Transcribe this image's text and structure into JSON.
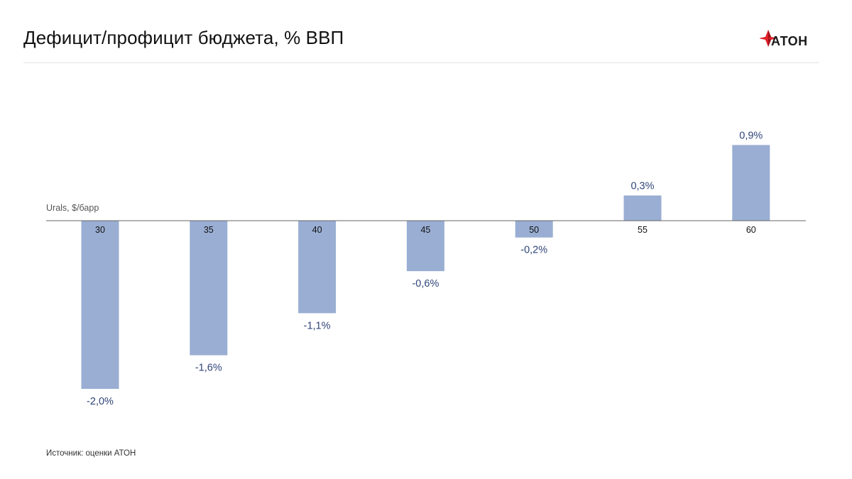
{
  "header": {
    "title": "Дефицит/профицит бюджета, % ВВП",
    "logo_text": "АТОН"
  },
  "footer": {
    "source": "Источник: оценки АТОН"
  },
  "colors": {
    "bar": "#9aaed3",
    "label": "#2f4478",
    "axis": "#666666",
    "logo_red": "#e0202a"
  },
  "chart_data": {
    "type": "bar",
    "title": "Дефицит/профицит бюджета, % ВВП",
    "xlabel": "Urals, $/барр",
    "ylabel": "",
    "categories": [
      "30",
      "35",
      "40",
      "45",
      "50",
      "55",
      "60"
    ],
    "values": [
      -2.0,
      -1.6,
      -1.1,
      -0.6,
      -0.2,
      0.3,
      0.9
    ],
    "value_labels": [
      "-2,0%",
      "-1,6%",
      "-1,1%",
      "-0,6%",
      "-0,2%",
      "0,3%",
      "0,9%"
    ],
    "ylim": [
      -2.0,
      0.9
    ],
    "grid": false,
    "legend": "none"
  }
}
